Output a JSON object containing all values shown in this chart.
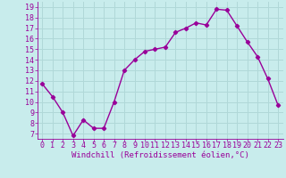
{
  "x": [
    0,
    1,
    2,
    3,
    4,
    5,
    6,
    7,
    8,
    9,
    10,
    11,
    12,
    13,
    14,
    15,
    16,
    17,
    18,
    19,
    20,
    21,
    22,
    23
  ],
  "y": [
    11.7,
    10.5,
    9.0,
    6.8,
    8.3,
    7.5,
    7.5,
    10.0,
    13.0,
    14.0,
    14.8,
    15.0,
    15.2,
    16.6,
    17.0,
    17.5,
    17.3,
    18.8,
    18.7,
    17.2,
    15.7,
    14.3,
    12.2,
    9.7
  ],
  "line_color": "#990099",
  "marker": "D",
  "marker_size": 2.2,
  "line_width": 1.0,
  "xlabel": "Windchill (Refroidissement éolien,°C)",
  "xlim": [
    -0.5,
    23.5
  ],
  "ylim": [
    6.5,
    19.5
  ],
  "yticks": [
    7,
    8,
    9,
    10,
    11,
    12,
    13,
    14,
    15,
    16,
    17,
    18,
    19
  ],
  "xticks": [
    0,
    1,
    2,
    3,
    4,
    5,
    6,
    7,
    8,
    9,
    10,
    11,
    12,
    13,
    14,
    15,
    16,
    17,
    18,
    19,
    20,
    21,
    22,
    23
  ],
  "bg_color": "#c8ecec",
  "grid_color": "#b0d8d8",
  "tick_color": "#990099",
  "label_color": "#990099",
  "xlabel_fontsize": 6.5,
  "tick_fontsize": 6.0,
  "font_family": "monospace"
}
